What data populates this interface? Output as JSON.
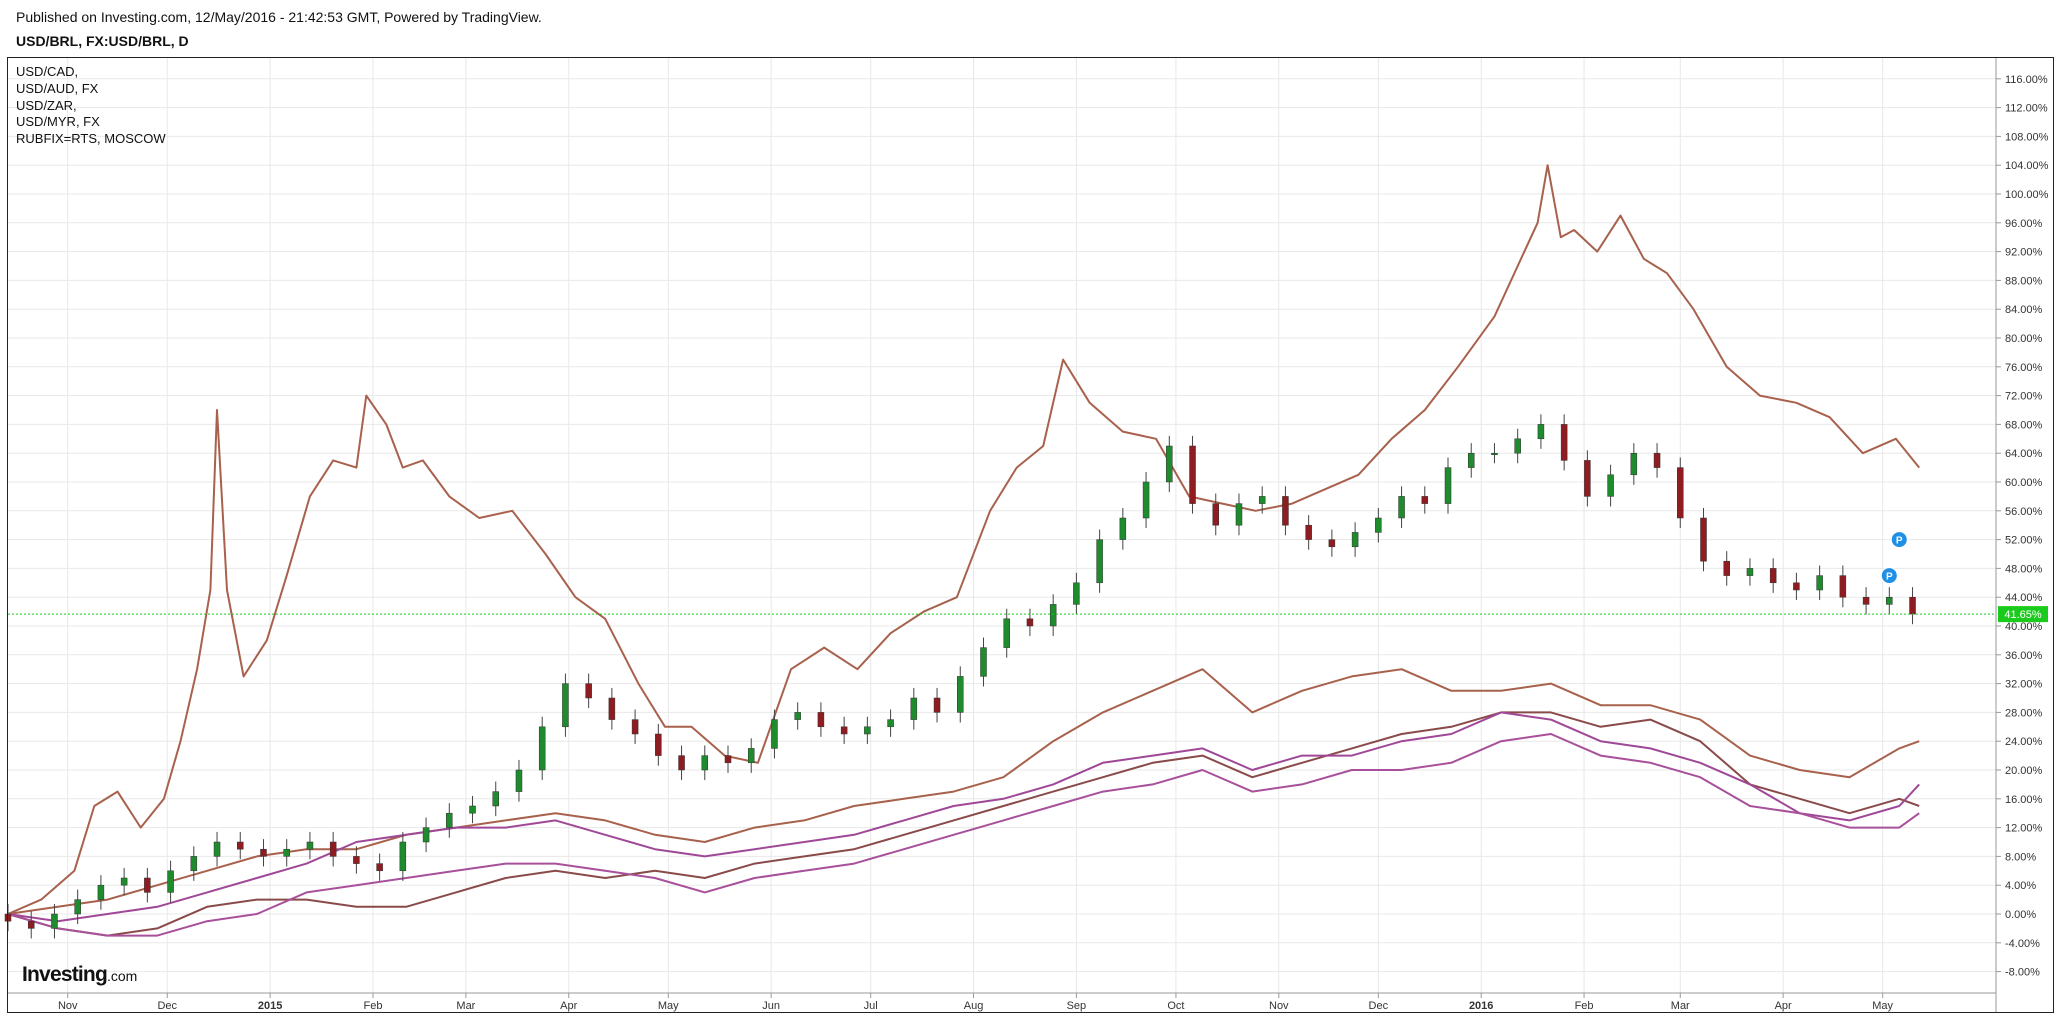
{
  "header": {
    "published": "Published on Investing.com, 12/May/2016 - 21:42:53 GMT, Powered by TradingView.",
    "symbol": "USD/BRL, FX:USD/BRL, D"
  },
  "legend": [
    "USD/CAD,",
    "USD/AUD, FX",
    "USD/ZAR,",
    "USD/MYR, FX",
    "RUBFIX=RTS, MOSCOW"
  ],
  "logo": {
    "brand": "Investing",
    "domain": ".com"
  },
  "colors": {
    "up_candle": "#1e8b2c",
    "down_candle": "#8e1c21",
    "brown_line": "#a8614c",
    "dark_brown_line": "#8a4a4a",
    "purple_line": "#a04898",
    "magenta_line": "#a8509a",
    "price_line": "#1bcb1b",
    "grid": "#e8e8e8"
  },
  "markers": [
    "P",
    "P"
  ],
  "chart_data": {
    "type": "line",
    "title": "USD/BRL, FX:USD/BRL, D",
    "y_unit": "%",
    "ylim": [
      -11,
      120
    ],
    "y_ticks": [
      "116.00%",
      "112.00%",
      "108.00%",
      "104.00%",
      "100.00%",
      "96.00%",
      "92.00%",
      "88.00%",
      "84.00%",
      "80.00%",
      "76.00%",
      "72.00%",
      "68.00%",
      "64.00%",
      "60.00%",
      "56.00%",
      "52.00%",
      "48.00%",
      "44.00%",
      "40.00%",
      "36.00%",
      "32.00%",
      "28.00%",
      "24.00%",
      "20.00%",
      "16.00%",
      "12.00%",
      "8.00%",
      "4.00%",
      "0.00%",
      "-4.00%",
      "-8.00%"
    ],
    "x_ticks": [
      "Nov",
      "Dec",
      "2015",
      "Feb",
      "Mar",
      "Apr",
      "May",
      "Jun",
      "Jul",
      "Aug",
      "Sep",
      "Oct",
      "Nov",
      "Dec",
      "2016",
      "Feb",
      "Mar",
      "Apr",
      "May"
    ],
    "x_tick_dates": [
      "2014-11-01",
      "2014-12-01",
      "2015-01-01",
      "2015-02-01",
      "2015-03-01",
      "2015-04-01",
      "2015-05-01",
      "2015-06-01",
      "2015-07-01",
      "2015-08-01",
      "2015-09-01",
      "2015-10-01",
      "2015-11-01",
      "2015-12-01",
      "2016-01-01",
      "2016-02-01",
      "2016-03-01",
      "2016-04-01",
      "2016-05-01"
    ],
    "x_range": [
      "2014-10-14",
      "2016-05-13"
    ],
    "grid": true,
    "current_value": {
      "label": "41.65%",
      "value": 41.65
    },
    "p_markers": [
      {
        "date": "2016-05-06",
        "value": 52
      },
      {
        "date": "2016-05-03",
        "value": 47
      }
    ],
    "usdbrl_candles": {
      "name": "USD/BRL",
      "type": "candlestick",
      "dates": [
        "2014-10-14",
        "2014-10-21",
        "2014-10-28",
        "2014-11-04",
        "2014-11-11",
        "2014-11-18",
        "2014-11-25",
        "2014-12-02",
        "2014-12-09",
        "2014-12-16",
        "2014-12-23",
        "2014-12-30",
        "2015-01-06",
        "2015-01-13",
        "2015-01-20",
        "2015-01-27",
        "2015-02-03",
        "2015-02-10",
        "2015-02-17",
        "2015-02-24",
        "2015-03-03",
        "2015-03-10",
        "2015-03-17",
        "2015-03-24",
        "2015-03-31",
        "2015-04-07",
        "2015-04-14",
        "2015-04-21",
        "2015-04-28",
        "2015-05-05",
        "2015-05-12",
        "2015-05-19",
        "2015-05-26",
        "2015-06-02",
        "2015-06-09",
        "2015-06-16",
        "2015-06-23",
        "2015-06-30",
        "2015-07-07",
        "2015-07-14",
        "2015-07-21",
        "2015-07-28",
        "2015-08-04",
        "2015-08-11",
        "2015-08-18",
        "2015-08-25",
        "2015-09-01",
        "2015-09-08",
        "2015-09-15",
        "2015-09-22",
        "2015-09-29",
        "2015-10-06",
        "2015-10-13",
        "2015-10-20",
        "2015-10-27",
        "2015-11-03",
        "2015-11-10",
        "2015-11-17",
        "2015-11-24",
        "2015-12-01",
        "2015-12-08",
        "2015-12-15",
        "2015-12-22",
        "2015-12-29",
        "2016-01-05",
        "2016-01-12",
        "2016-01-19",
        "2016-01-26",
        "2016-02-02",
        "2016-02-09",
        "2016-02-16",
        "2016-02-23",
        "2016-03-01",
        "2016-03-08",
        "2016-03-15",
        "2016-03-22",
        "2016-03-29",
        "2016-04-05",
        "2016-04-12",
        "2016-04-19",
        "2016-04-26",
        "2016-05-03",
        "2016-05-10"
      ],
      "close": [
        -1,
        -2,
        0,
        2,
        4,
        5,
        3,
        6,
        8,
        10,
        9,
        8,
        9,
        10,
        8,
        7,
        6,
        10,
        12,
        14,
        15,
        17,
        20,
        26,
        32,
        30,
        27,
        25,
        22,
        20,
        22,
        21,
        23,
        27,
        28,
        26,
        25,
        26,
        27,
        30,
        28,
        33,
        37,
        41,
        40,
        43,
        46,
        52,
        55,
        60,
        65,
        57,
        54,
        57,
        58,
        54,
        52,
        51,
        53,
        55,
        58,
        57,
        62,
        64,
        64,
        66,
        68,
        63,
        58,
        61,
        64,
        62,
        55,
        49,
        47,
        48,
        46,
        45,
        47,
        44,
        43,
        44,
        41.65
      ]
    },
    "series": [
      {
        "name": "RUBFIX=RTS, MOSCOW",
        "color": "#a8614c",
        "dates": [
          "2014-10-14",
          "2014-10-24",
          "2014-11-03",
          "2014-11-09",
          "2014-11-16",
          "2014-11-23",
          "2014-11-30",
          "2014-12-05",
          "2014-12-10",
          "2014-12-14",
          "2014-12-16",
          "2014-12-19",
          "2014-12-24",
          "2014-12-31",
          "2015-01-06",
          "2015-01-13",
          "2015-01-20",
          "2015-01-27",
          "2015-01-30",
          "2015-02-05",
          "2015-02-10",
          "2015-02-16",
          "2015-02-24",
          "2015-03-05",
          "2015-03-15",
          "2015-03-25",
          "2015-04-03",
          "2015-04-12",
          "2015-04-22",
          "2015-04-30",
          "2015-05-08",
          "2015-05-18",
          "2015-05-28",
          "2015-06-07",
          "2015-06-17",
          "2015-06-27",
          "2015-07-07",
          "2015-07-17",
          "2015-07-27",
          "2015-08-06",
          "2015-08-14",
          "2015-08-22",
          "2015-08-28",
          "2015-09-05",
          "2015-09-15",
          "2015-09-25",
          "2015-10-05",
          "2015-10-15",
          "2015-10-25",
          "2015-11-05",
          "2015-11-15",
          "2015-11-25",
          "2015-12-05",
          "2015-12-15",
          "2015-12-25",
          "2016-01-05",
          "2016-01-12",
          "2016-01-18",
          "2016-01-21",
          "2016-01-25",
          "2016-01-29",
          "2016-02-05",
          "2016-02-12",
          "2016-02-19",
          "2016-02-26",
          "2016-03-05",
          "2016-03-15",
          "2016-03-25",
          "2016-04-05",
          "2016-04-15",
          "2016-04-25",
          "2016-05-05",
          "2016-05-12"
        ],
        "values": [
          0,
          2,
          6,
          15,
          17,
          12,
          16,
          24,
          34,
          45,
          70,
          45,
          33,
          38,
          47,
          58,
          63,
          62,
          72,
          68,
          62,
          63,
          58,
          55,
          56,
          50,
          44,
          41,
          32,
          26,
          26,
          22,
          21,
          34,
          37,
          34,
          39,
          42,
          44,
          56,
          62,
          65,
          77,
          71,
          67,
          66,
          58,
          57,
          56,
          57,
          59,
          61,
          66,
          70,
          76,
          83,
          90,
          96,
          104,
          94,
          95,
          92,
          97,
          91,
          89,
          84,
          76,
          72,
          71,
          69,
          64,
          66,
          62
        ]
      },
      {
        "name": "USD/ZAR",
        "color": "#a8614c",
        "dates": [
          "2014-10-14",
          "2014-10-29",
          "2014-11-13",
          "2014-11-28",
          "2014-12-13",
          "2014-12-28",
          "2015-01-12",
          "2015-01-27",
          "2015-02-11",
          "2015-02-26",
          "2015-03-13",
          "2015-03-28",
          "2015-04-12",
          "2015-04-27",
          "2015-05-12",
          "2015-05-27",
          "2015-06-11",
          "2015-06-26",
          "2015-07-11",
          "2015-07-26",
          "2015-08-10",
          "2015-08-25",
          "2015-09-09",
          "2015-09-24",
          "2015-10-09",
          "2015-10-24",
          "2015-11-08",
          "2015-11-23",
          "2015-12-08",
          "2015-12-23",
          "2016-01-07",
          "2016-01-22",
          "2016-02-06",
          "2016-02-21",
          "2016-03-07",
          "2016-03-22",
          "2016-04-06",
          "2016-04-21",
          "2016-05-06",
          "2016-05-12"
        ],
        "values": [
          0,
          1,
          2,
          4,
          6,
          8,
          9,
          9,
          11,
          12,
          13,
          14,
          13,
          11,
          10,
          12,
          13,
          15,
          16,
          17,
          19,
          24,
          28,
          31,
          34,
          28,
          31,
          33,
          34,
          31,
          31,
          32,
          29,
          29,
          27,
          22,
          20,
          19,
          23,
          24
        ]
      },
      {
        "name": "USD/MYR, FX",
        "color": "#8a4a4a",
        "dates": [
          "2014-10-14",
          "2014-10-29",
          "2014-11-13",
          "2014-11-28",
          "2014-12-13",
          "2014-12-28",
          "2015-01-12",
          "2015-01-27",
          "2015-02-11",
          "2015-02-26",
          "2015-03-13",
          "2015-03-28",
          "2015-04-12",
          "2015-04-27",
          "2015-05-12",
          "2015-05-27",
          "2015-06-11",
          "2015-06-26",
          "2015-07-11",
          "2015-07-26",
          "2015-08-10",
          "2015-08-25",
          "2015-09-09",
          "2015-09-24",
          "2015-10-09",
          "2015-10-24",
          "2015-11-08",
          "2015-11-23",
          "2015-12-08",
          "2015-12-23",
          "2016-01-07",
          "2016-01-22",
          "2016-02-06",
          "2016-02-21",
          "2016-03-07",
          "2016-03-22",
          "2016-04-06",
          "2016-04-21",
          "2016-05-06",
          "2016-05-12"
        ],
        "values": [
          0,
          -2,
          -3,
          -2,
          1,
          2,
          2,
          1,
          1,
          3,
          5,
          6,
          5,
          6,
          5,
          7,
          8,
          9,
          11,
          13,
          15,
          17,
          19,
          21,
          22,
          19,
          21,
          23,
          25,
          26,
          28,
          28,
          26,
          27,
          24,
          18,
          16,
          14,
          16,
          15
        ]
      },
      {
        "name": "USD/CAD",
        "color": "#a04898",
        "dates": [
          "2014-10-14",
          "2014-10-29",
          "2014-11-13",
          "2014-11-28",
          "2014-12-13",
          "2014-12-28",
          "2015-01-12",
          "2015-01-27",
          "2015-02-11",
          "2015-02-26",
          "2015-03-13",
          "2015-03-28",
          "2015-04-12",
          "2015-04-27",
          "2015-05-12",
          "2015-05-27",
          "2015-06-11",
          "2015-06-26",
          "2015-07-11",
          "2015-07-26",
          "2015-08-10",
          "2015-08-25",
          "2015-09-09",
          "2015-09-24",
          "2015-10-09",
          "2015-10-24",
          "2015-11-08",
          "2015-11-23",
          "2015-12-08",
          "2015-12-23",
          "2016-01-07",
          "2016-01-22",
          "2016-02-06",
          "2016-02-21",
          "2016-03-07",
          "2016-03-22",
          "2016-04-06",
          "2016-04-21",
          "2016-05-06",
          "2016-05-12"
        ],
        "values": [
          0,
          -1,
          0,
          1,
          3,
          5,
          7,
          10,
          11,
          12,
          12,
          13,
          11,
          9,
          8,
          9,
          10,
          11,
          13,
          15,
          16,
          18,
          21,
          22,
          23,
          20,
          22,
          22,
          24,
          25,
          28,
          27,
          24,
          23,
          21,
          18,
          14,
          13,
          15,
          18
        ]
      },
      {
        "name": "USD/AUD, FX",
        "color": "#a8509a",
        "dates": [
          "2014-10-14",
          "2014-10-29",
          "2014-11-13",
          "2014-11-28",
          "2014-12-13",
          "2014-12-28",
          "2015-01-12",
          "2015-01-27",
          "2015-02-11",
          "2015-02-26",
          "2015-03-13",
          "2015-03-28",
          "2015-04-12",
          "2015-04-27",
          "2015-05-12",
          "2015-05-27",
          "2015-06-11",
          "2015-06-26",
          "2015-07-11",
          "2015-07-26",
          "2015-08-10",
          "2015-08-25",
          "2015-09-09",
          "2015-09-24",
          "2015-10-09",
          "2015-10-24",
          "2015-11-08",
          "2015-11-23",
          "2015-12-08",
          "2015-12-23",
          "2016-01-07",
          "2016-01-22",
          "2016-02-06",
          "2016-02-21",
          "2016-03-07",
          "2016-03-22",
          "2016-04-06",
          "2016-04-21",
          "2016-05-06",
          "2016-05-12"
        ],
        "values": [
          0,
          -2,
          -3,
          -3,
          -1,
          0,
          3,
          4,
          5,
          6,
          7,
          7,
          6,
          5,
          3,
          5,
          6,
          7,
          9,
          11,
          13,
          15,
          17,
          18,
          20,
          17,
          18,
          20,
          20,
          21,
          24,
          25,
          22,
          21,
          19,
          15,
          14,
          12,
          12,
          14
        ]
      }
    ]
  }
}
